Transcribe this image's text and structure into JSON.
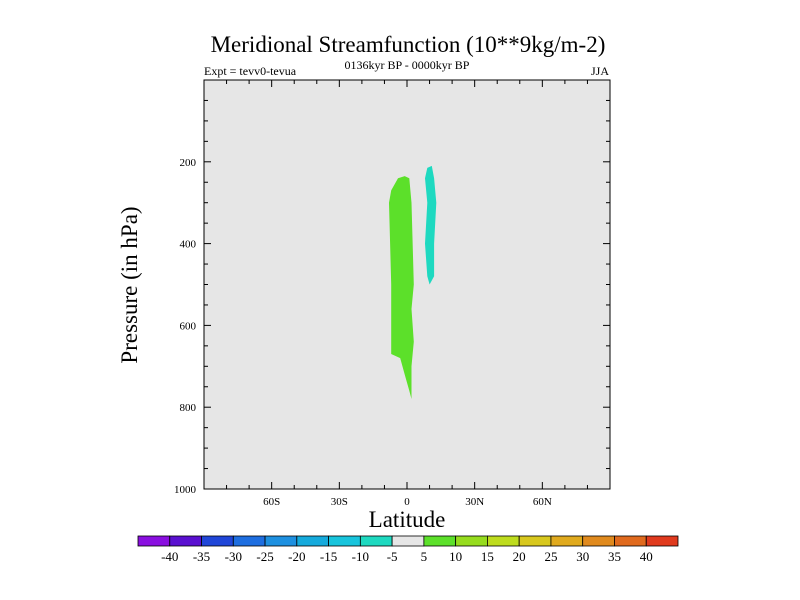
{
  "chart_data": {
    "type": "contour",
    "title": "Meridional Streamfunction (10**9kg/m-2)",
    "left_label": "Expt = tevv0-tevua",
    "center_label": "0136kyr BP - 0000kyr BP",
    "right_label": "JJA",
    "xlabel": "Latitude",
    "ylabel": "Pressure (in hPa)",
    "xlim": [
      -90,
      90
    ],
    "ylim": [
      1000,
      0
    ],
    "x_ticks": [
      {
        "value": -60,
        "label": "60S"
      },
      {
        "value": -30,
        "label": "30S"
      },
      {
        "value": 0,
        "label": "0"
      },
      {
        "value": 30,
        "label": "30N"
      },
      {
        "value": 60,
        "label": "60N"
      }
    ],
    "y_ticks": [
      {
        "value": 200,
        "label": "200"
      },
      {
        "value": 400,
        "label": "400"
      },
      {
        "value": 600,
        "label": "600"
      },
      {
        "value": 800,
        "label": "800"
      },
      {
        "value": 1000,
        "label": "1000"
      }
    ],
    "background_color": "#e6e6e6",
    "filled_regions": [
      {
        "range": "5 to 10",
        "color": "#5ce02a",
        "outline": [
          [
            -7,
            270
          ],
          [
            -4,
            240
          ],
          [
            -1,
            235
          ],
          [
            1,
            240
          ],
          [
            2,
            300
          ],
          [
            3,
            500
          ],
          [
            2,
            560
          ],
          [
            3,
            640
          ],
          [
            2,
            700
          ],
          [
            2,
            780
          ],
          [
            1,
            760
          ],
          [
            -1,
            720
          ],
          [
            -3,
            680
          ],
          [
            -7,
            670
          ],
          [
            -7,
            500
          ],
          [
            -8,
            300
          ]
        ]
      },
      {
        "range": "-10 to -5",
        "color": "#1ed9c0",
        "outline": [
          [
            9,
            215
          ],
          [
            11,
            210
          ],
          [
            12,
            240
          ],
          [
            13,
            300
          ],
          [
            12,
            400
          ],
          [
            12,
            480
          ],
          [
            10,
            500
          ],
          [
            9,
            480
          ],
          [
            8,
            400
          ],
          [
            9,
            300
          ],
          [
            8,
            240
          ]
        ]
      }
    ],
    "colorbar": {
      "labels": [
        "-40",
        "-35",
        "-30",
        "-25",
        "-20",
        "-15",
        "-10",
        "-5",
        "5",
        "10",
        "15",
        "20",
        "25",
        "30",
        "35",
        "40"
      ],
      "colors": [
        "#8a0fe0",
        "#5a10d0",
        "#2046d8",
        "#1e6ee0",
        "#1e90e0",
        "#15aadc",
        "#18c4dc",
        "#1ed9c0",
        "#e6e6e6",
        "#5ce02a",
        "#96dc1e",
        "#bedc1e",
        "#d8c81e",
        "#e0aa1e",
        "#e08a1e",
        "#e06a1e",
        "#e03a1e"
      ]
    }
  }
}
